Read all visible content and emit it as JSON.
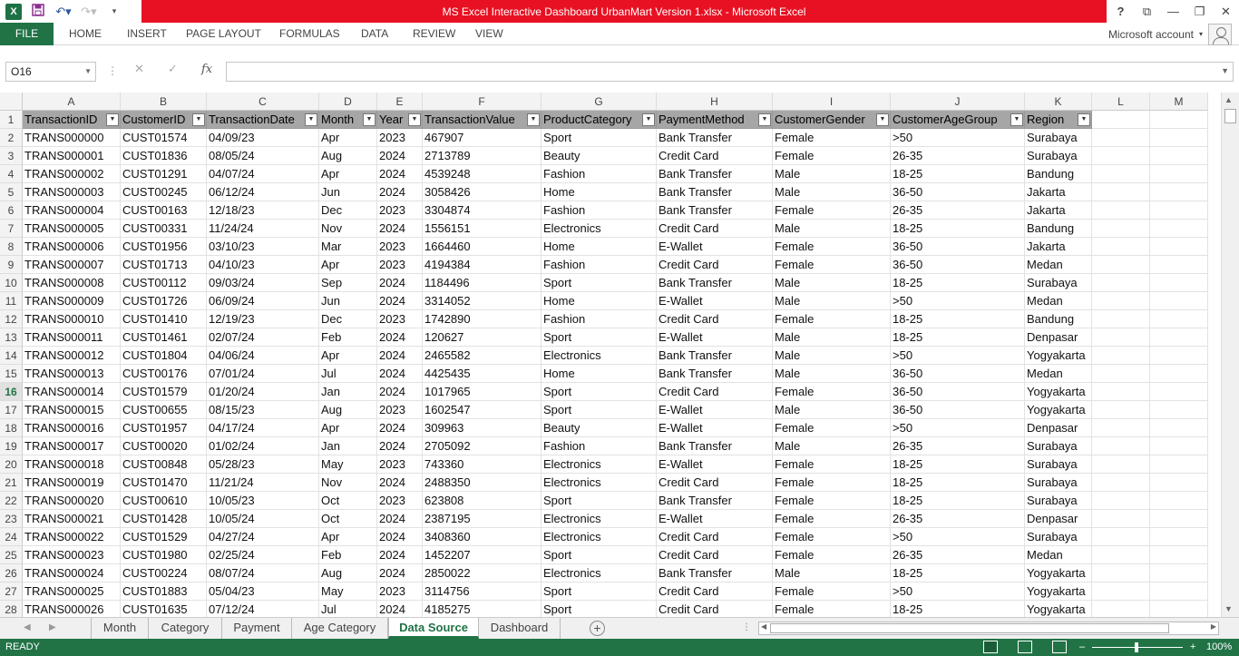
{
  "app": {
    "title": "MS Excel Interactive Dashboard UrbanMart Version 1.xlsx -  Microsoft Excel",
    "logo": "X",
    "account": "Microsoft account",
    "accent": "#217346",
    "title_bg": "#e81123"
  },
  "ribbon": {
    "tabs": [
      "FILE",
      "HOME",
      "INSERT",
      "PAGE LAYOUT",
      "FORMULAS",
      "DATA",
      "REVIEW",
      "VIEW"
    ]
  },
  "formula": {
    "namebox": "O16",
    "fx_label": "fx",
    "value": ""
  },
  "grid": {
    "columns": [
      "A",
      "B",
      "C",
      "D",
      "E",
      "F",
      "G",
      "H",
      "I",
      "J",
      "K",
      "L",
      "M"
    ],
    "header_row": [
      "TransactionID",
      "CustomerID",
      "TransactionDate",
      "Month",
      "Year",
      "TransactionValue",
      "ProductCategory",
      "PaymentMethod",
      "CustomerGender",
      "CustomerAgeGroup",
      "Region"
    ],
    "selected_row": 16,
    "rows": [
      [
        "TRANS000000",
        "CUST01574",
        "04/09/23",
        "Apr",
        "2023",
        "467907",
        "Sport",
        "Bank Transfer",
        "Female",
        ">50",
        "Surabaya"
      ],
      [
        "TRANS000001",
        "CUST01836",
        "08/05/24",
        "Aug",
        "2024",
        "2713789",
        "Beauty",
        "Credit Card",
        "Female",
        "26-35",
        "Surabaya"
      ],
      [
        "TRANS000002",
        "CUST01291",
        "04/07/24",
        "Apr",
        "2024",
        "4539248",
        "Fashion",
        "Bank Transfer",
        "Male",
        "18-25",
        "Bandung"
      ],
      [
        "TRANS000003",
        "CUST00245",
        "06/12/24",
        "Jun",
        "2024",
        "3058426",
        "Home",
        "Bank Transfer",
        "Male",
        "36-50",
        "Jakarta"
      ],
      [
        "TRANS000004",
        "CUST00163",
        "12/18/23",
        "Dec",
        "2023",
        "3304874",
        "Fashion",
        "Bank Transfer",
        "Female",
        "26-35",
        "Jakarta"
      ],
      [
        "TRANS000005",
        "CUST00331",
        "11/24/24",
        "Nov",
        "2024",
        "1556151",
        "Electronics",
        "Credit Card",
        "Male",
        "18-25",
        "Bandung"
      ],
      [
        "TRANS000006",
        "CUST01956",
        "03/10/23",
        "Mar",
        "2023",
        "1664460",
        "Home",
        "E-Wallet",
        "Female",
        "36-50",
        "Jakarta"
      ],
      [
        "TRANS000007",
        "CUST01713",
        "04/10/23",
        "Apr",
        "2023",
        "4194384",
        "Fashion",
        "Credit Card",
        "Female",
        "36-50",
        "Medan"
      ],
      [
        "TRANS000008",
        "CUST00112",
        "09/03/24",
        "Sep",
        "2024",
        "1184496",
        "Sport",
        "Bank Transfer",
        "Male",
        "18-25",
        "Surabaya"
      ],
      [
        "TRANS000009",
        "CUST01726",
        "06/09/24",
        "Jun",
        "2024",
        "3314052",
        "Home",
        "E-Wallet",
        "Male",
        ">50",
        "Medan"
      ],
      [
        "TRANS000010",
        "CUST01410",
        "12/19/23",
        "Dec",
        "2023",
        "1742890",
        "Fashion",
        "Credit Card",
        "Female",
        "18-25",
        "Bandung"
      ],
      [
        "TRANS000011",
        "CUST01461",
        "02/07/24",
        "Feb",
        "2024",
        "120627",
        "Sport",
        "E-Wallet",
        "Male",
        "18-25",
        "Denpasar"
      ],
      [
        "TRANS000012",
        "CUST01804",
        "04/06/24",
        "Apr",
        "2024",
        "2465582",
        "Electronics",
        "Bank Transfer",
        "Male",
        ">50",
        "Yogyakarta"
      ],
      [
        "TRANS000013",
        "CUST00176",
        "07/01/24",
        "Jul",
        "2024",
        "4425435",
        "Home",
        "Bank Transfer",
        "Male",
        "36-50",
        "Medan"
      ],
      [
        "TRANS000014",
        "CUST01579",
        "01/20/24",
        "Jan",
        "2024",
        "1017965",
        "Sport",
        "Credit Card",
        "Female",
        "36-50",
        "Yogyakarta"
      ],
      [
        "TRANS000015",
        "CUST00655",
        "08/15/23",
        "Aug",
        "2023",
        "1602547",
        "Sport",
        "E-Wallet",
        "Male",
        "36-50",
        "Yogyakarta"
      ],
      [
        "TRANS000016",
        "CUST01957",
        "04/17/24",
        "Apr",
        "2024",
        "309963",
        "Beauty",
        "E-Wallet",
        "Female",
        ">50",
        "Denpasar"
      ],
      [
        "TRANS000017",
        "CUST00020",
        "01/02/24",
        "Jan",
        "2024",
        "2705092",
        "Fashion",
        "Bank Transfer",
        "Male",
        "26-35",
        "Surabaya"
      ],
      [
        "TRANS000018",
        "CUST00848",
        "05/28/23",
        "May",
        "2023",
        "743360",
        "Electronics",
        "E-Wallet",
        "Female",
        "18-25",
        "Surabaya"
      ],
      [
        "TRANS000019",
        "CUST01470",
        "11/21/24",
        "Nov",
        "2024",
        "2488350",
        "Electronics",
        "Credit Card",
        "Female",
        "18-25",
        "Surabaya"
      ],
      [
        "TRANS000020",
        "CUST00610",
        "10/05/23",
        "Oct",
        "2023",
        "623808",
        "Sport",
        "Bank Transfer",
        "Female",
        "18-25",
        "Surabaya"
      ],
      [
        "TRANS000021",
        "CUST01428",
        "10/05/24",
        "Oct",
        "2024",
        "2387195",
        "Electronics",
        "E-Wallet",
        "Female",
        "26-35",
        "Denpasar"
      ],
      [
        "TRANS000022",
        "CUST01529",
        "04/27/24",
        "Apr",
        "2024",
        "3408360",
        "Electronics",
        "Credit Card",
        "Female",
        ">50",
        "Surabaya"
      ],
      [
        "TRANS000023",
        "CUST01980",
        "02/25/24",
        "Feb",
        "2024",
        "1452207",
        "Sport",
        "Credit Card",
        "Female",
        "26-35",
        "Medan"
      ],
      [
        "TRANS000024",
        "CUST00224",
        "08/07/24",
        "Aug",
        "2024",
        "2850022",
        "Electronics",
        "Bank Transfer",
        "Male",
        "18-25",
        "Yogyakarta"
      ],
      [
        "TRANS000025",
        "CUST01883",
        "05/04/23",
        "May",
        "2023",
        "3114756",
        "Sport",
        "Credit Card",
        "Female",
        ">50",
        "Yogyakarta"
      ],
      [
        "TRANS000026",
        "CUST01635",
        "07/12/24",
        "Jul",
        "2024",
        "4185275",
        "Sport",
        "Credit Card",
        "Female",
        "18-25",
        "Yogyakarta"
      ]
    ]
  },
  "sheets": {
    "tabs": [
      "Month",
      "Category",
      "Payment",
      "Age Category",
      "Data Source",
      "Dashboard"
    ],
    "active": "Data Source"
  },
  "status": {
    "mode": "READY",
    "zoom": "100%"
  }
}
